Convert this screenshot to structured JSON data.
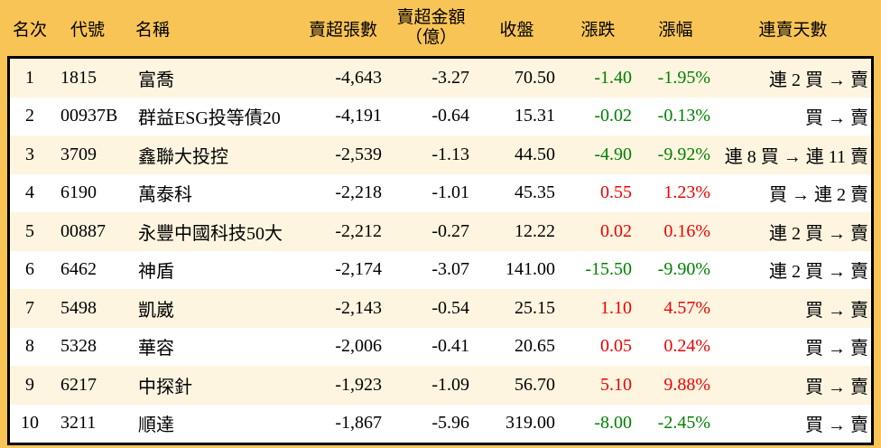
{
  "colors": {
    "frame": "#F8C455",
    "row_odd": "#FDF5E0",
    "row_even": "#FFFFFF",
    "up": "#F00000",
    "down": "#008000",
    "border": "#000000"
  },
  "table": {
    "columns": [
      {
        "key": "rank",
        "label": "名次"
      },
      {
        "key": "code",
        "label": "代號"
      },
      {
        "key": "name",
        "label": "名稱"
      },
      {
        "key": "sell_volume",
        "label": "賣超張數"
      },
      {
        "key": "sell_amount",
        "label": "賣超金額",
        "label2": "（億）"
      },
      {
        "key": "close",
        "label": "收盤"
      },
      {
        "key": "change",
        "label": "漲跌"
      },
      {
        "key": "change_pct",
        "label": "漲幅"
      },
      {
        "key": "streak",
        "label": "連賣天數"
      }
    ],
    "rows": [
      {
        "rank": "1",
        "code": "1815",
        "name": "富喬",
        "sell_volume": "-4,643",
        "sell_amount": "-3.27",
        "close": "70.50",
        "change": "-1.40",
        "change_pct": "-1.95%",
        "trend": "down",
        "streak": "連 2 買 → 賣"
      },
      {
        "rank": "2",
        "code": "00937B",
        "name": "群益ESG投等債20",
        "sell_volume": "-4,191",
        "sell_amount": "-0.64",
        "close": "15.31",
        "change": "-0.02",
        "change_pct": "-0.13%",
        "trend": "down",
        "streak": "買 → 賣"
      },
      {
        "rank": "3",
        "code": "3709",
        "name": "鑫聯大投控",
        "sell_volume": "-2,539",
        "sell_amount": "-1.13",
        "close": "44.50",
        "change": "-4.90",
        "change_pct": "-9.92%",
        "trend": "down",
        "streak": "連 8 買 → 連 11 賣"
      },
      {
        "rank": "4",
        "code": "6190",
        "name": "萬泰科",
        "sell_volume": "-2,218",
        "sell_amount": "-1.01",
        "close": "45.35",
        "change": "0.55",
        "change_pct": "1.23%",
        "trend": "up",
        "streak": "買 → 連 2 賣"
      },
      {
        "rank": "5",
        "code": "00887",
        "name": "永豐中國科技50大",
        "sell_volume": "-2,212",
        "sell_amount": "-0.27",
        "close": "12.22",
        "change": "0.02",
        "change_pct": "0.16%",
        "trend": "up",
        "streak": "連 2 買 → 賣"
      },
      {
        "rank": "6",
        "code": "6462",
        "name": "神盾",
        "sell_volume": "-2,174",
        "sell_amount": "-3.07",
        "close": "141.00",
        "change": "-15.50",
        "change_pct": "-9.90%",
        "trend": "down",
        "streak": "連 2 買 → 賣"
      },
      {
        "rank": "7",
        "code": "5498",
        "name": "凱崴",
        "sell_volume": "-2,143",
        "sell_amount": "-0.54",
        "close": "25.15",
        "change": "1.10",
        "change_pct": "4.57%",
        "trend": "up",
        "streak": "買 → 賣"
      },
      {
        "rank": "8",
        "code": "5328",
        "name": "華容",
        "sell_volume": "-2,006",
        "sell_amount": "-0.41",
        "close": "20.65",
        "change": "0.05",
        "change_pct": "0.24%",
        "trend": "up",
        "streak": "買 → 賣"
      },
      {
        "rank": "9",
        "code": "6217",
        "name": "中探針",
        "sell_volume": "-1,923",
        "sell_amount": "-1.09",
        "close": "56.70",
        "change": "5.10",
        "change_pct": "9.88%",
        "trend": "up",
        "streak": "買 → 賣"
      },
      {
        "rank": "10",
        "code": "3211",
        "name": "順達",
        "sell_volume": "-1,867",
        "sell_amount": "-5.96",
        "close": "319.00",
        "change": "-8.00",
        "change_pct": "-2.45%",
        "trend": "down",
        "streak": "買 → 賣"
      }
    ]
  }
}
